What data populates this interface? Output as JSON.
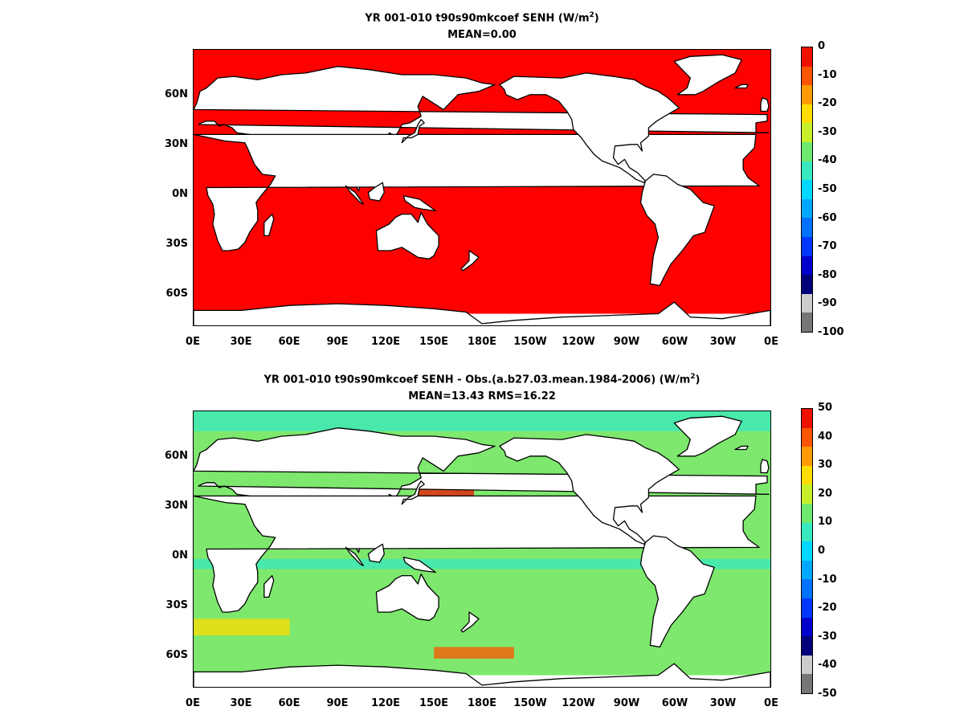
{
  "panels": [
    {
      "title_pre": "YR 001-010 t90s90mkcoef  SENH (W/m",
      "title_sup": "2",
      "title_post": ")",
      "stats": "MEAN=0.00",
      "field_fill": "#ff0000",
      "colorbar": {
        "labels": [
          "0",
          "-10",
          "-20",
          "-30",
          "-40",
          "-50",
          "-60",
          "-70",
          "-80",
          "-90",
          "-100"
        ],
        "colors": [
          "#ee1100",
          "#ff5500",
          "#ff9a00",
          "#ffdd00",
          "#c8f02a",
          "#6ee86e",
          "#38e8c0",
          "#00d8ff",
          "#00a8ff",
          "#0072ff",
          "#0038ff",
          "#0000cc",
          "#00007a",
          "#cccccc",
          "#777777"
        ]
      }
    },
    {
      "title_pre": "YR 001-010 t90s90mkcoef SENH - Obs.(a.b27.03.mean.1984-2006) (W/m",
      "title_sup": "2",
      "title_post": ")",
      "stats": "MEAN=13.43 RMS=16.22",
      "field_fill": "#7ee86e",
      "colorbar": {
        "labels": [
          "50",
          "40",
          "30",
          "20",
          "10",
          "0",
          "-10",
          "-20",
          "-30",
          "-40",
          "-50"
        ],
        "colors": [
          "#ee1100",
          "#ff5500",
          "#ff9a00",
          "#ffdd00",
          "#c8f02a",
          "#6ee86e",
          "#38e8c0",
          "#00d8ff",
          "#00a8ff",
          "#0072ff",
          "#0038ff",
          "#0000cc",
          "#00007a",
          "#cccccc",
          "#777777"
        ]
      }
    }
  ],
  "lat_labels": [
    "60N",
    "30N",
    "0N",
    "30S",
    "60S"
  ],
  "lat_values": [
    60,
    30,
    0,
    -30,
    -60
  ],
  "lon_labels": [
    "0E",
    "30E",
    "60E",
    "90E",
    "120E",
    "150E",
    "180E",
    "150W",
    "120W",
    "90W",
    "60W",
    "30W",
    "0E"
  ],
  "lon_values": [
    0,
    30,
    60,
    90,
    120,
    150,
    180,
    210,
    240,
    270,
    300,
    330,
    360
  ],
  "lat_range": [
    -79,
    87
  ],
  "lon_range": [
    0,
    360
  ],
  "land_color": "#ffffff",
  "coast_color": "#000000"
}
